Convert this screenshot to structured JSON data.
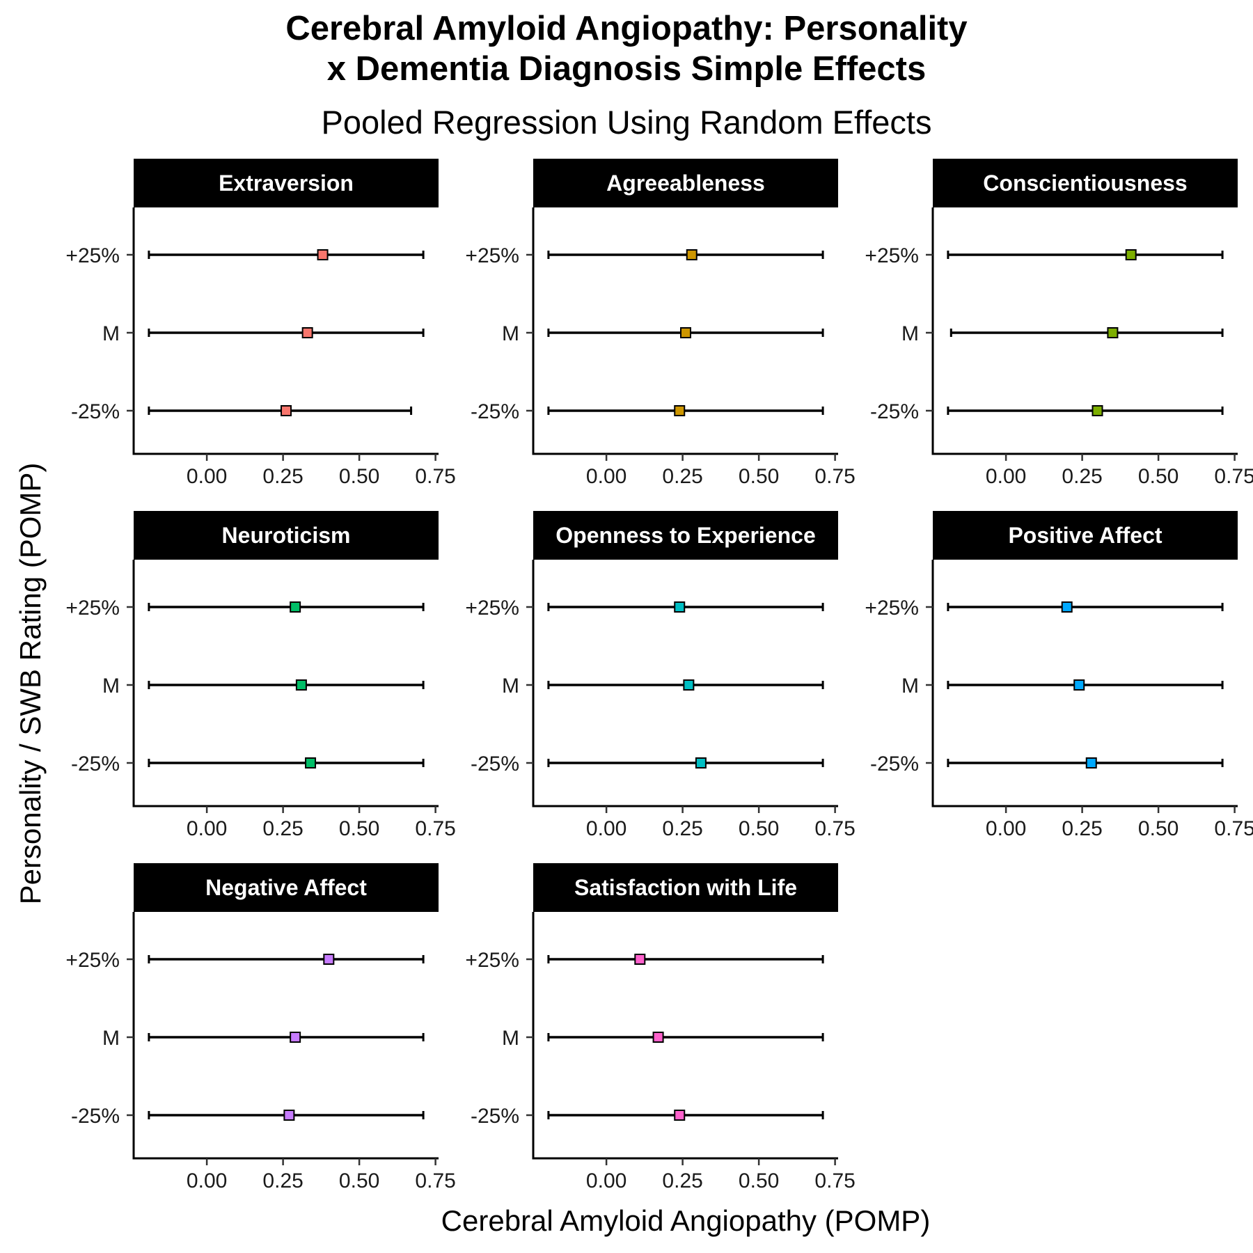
{
  "chart_data": {
    "type": "scatter",
    "title": "Cerebral Amyloid Angiopathy: Personality x Dementia Diagnosis Simple Effects",
    "title_lines": [
      "Cerebral Amyloid Angiopathy: Personality",
      "x Dementia Diagnosis Simple Effects"
    ],
    "subtitle": "Pooled Regression Using Random Effects",
    "xlabel": "Cerebral Amyloid Angiopathy (POMP)",
    "ylabel": "Personality / SWB Rating (POMP)",
    "xlim": [
      -0.24,
      0.76
    ],
    "xticks": [
      0,
      0.25,
      0.5,
      0.75
    ],
    "xtick_labels": [
      "0.00",
      "0.25",
      "0.50",
      "0.75"
    ],
    "y_categories": [
      "+25%",
      "M",
      "-25%"
    ],
    "grid": false,
    "legend": "none",
    "panels": [
      {
        "name": "Extraversion",
        "color": "#F8766D",
        "points": [
          {
            "level": "+25%",
            "estimate": 0.38,
            "ci_low": -0.19,
            "ci_high": 0.71
          },
          {
            "level": "M",
            "estimate": 0.33,
            "ci_low": -0.19,
            "ci_high": 0.71
          },
          {
            "level": "-25%",
            "estimate": 0.26,
            "ci_low": -0.19,
            "ci_high": 0.67
          }
        ]
      },
      {
        "name": "Agreeableness",
        "color": "#CD9600",
        "points": [
          {
            "level": "+25%",
            "estimate": 0.28,
            "ci_low": -0.19,
            "ci_high": 0.71
          },
          {
            "level": "M",
            "estimate": 0.26,
            "ci_low": -0.19,
            "ci_high": 0.71
          },
          {
            "level": "-25%",
            "estimate": 0.24,
            "ci_low": -0.19,
            "ci_high": 0.71
          }
        ]
      },
      {
        "name": "Conscientiousness",
        "color": "#7CAE00",
        "points": [
          {
            "level": "+25%",
            "estimate": 0.41,
            "ci_low": -0.19,
            "ci_high": 0.71
          },
          {
            "level": "M",
            "estimate": 0.35,
            "ci_low": -0.18,
            "ci_high": 0.71
          },
          {
            "level": "-25%",
            "estimate": 0.3,
            "ci_low": -0.19,
            "ci_high": 0.71
          }
        ]
      },
      {
        "name": "Neuroticism",
        "color": "#00BE67",
        "points": [
          {
            "level": "+25%",
            "estimate": 0.29,
            "ci_low": -0.19,
            "ci_high": 0.71
          },
          {
            "level": "M",
            "estimate": 0.31,
            "ci_low": -0.19,
            "ci_high": 0.71
          },
          {
            "level": "-25%",
            "estimate": 0.34,
            "ci_low": -0.19,
            "ci_high": 0.71
          }
        ]
      },
      {
        "name": "Openness to Experience",
        "color": "#00BFC4",
        "points": [
          {
            "level": "+25%",
            "estimate": 0.24,
            "ci_low": -0.19,
            "ci_high": 0.71
          },
          {
            "level": "M",
            "estimate": 0.27,
            "ci_low": -0.19,
            "ci_high": 0.71
          },
          {
            "level": "-25%",
            "estimate": 0.31,
            "ci_low": -0.19,
            "ci_high": 0.71
          }
        ]
      },
      {
        "name": "Positive Affect",
        "color": "#00A9FF",
        "points": [
          {
            "level": "+25%",
            "estimate": 0.2,
            "ci_low": -0.19,
            "ci_high": 0.71
          },
          {
            "level": "M",
            "estimate": 0.24,
            "ci_low": -0.19,
            "ci_high": 0.71
          },
          {
            "level": "-25%",
            "estimate": 0.28,
            "ci_low": -0.19,
            "ci_high": 0.71
          }
        ]
      },
      {
        "name": "Negative Affect",
        "color": "#C77CFF",
        "points": [
          {
            "level": "+25%",
            "estimate": 0.4,
            "ci_low": -0.19,
            "ci_high": 0.71
          },
          {
            "level": "M",
            "estimate": 0.29,
            "ci_low": -0.19,
            "ci_high": 0.71
          },
          {
            "level": "-25%",
            "estimate": 0.27,
            "ci_low": -0.19,
            "ci_high": 0.71
          }
        ]
      },
      {
        "name": "Satisfaction with Life",
        "color": "#FF61CC",
        "points": [
          {
            "level": "+25%",
            "estimate": 0.11,
            "ci_low": -0.19,
            "ci_high": 0.71
          },
          {
            "level": "M",
            "estimate": 0.17,
            "ci_low": -0.19,
            "ci_high": 0.71
          },
          {
            "level": "-25%",
            "estimate": 0.24,
            "ci_low": -0.19,
            "ci_high": 0.71
          }
        ]
      }
    ]
  }
}
